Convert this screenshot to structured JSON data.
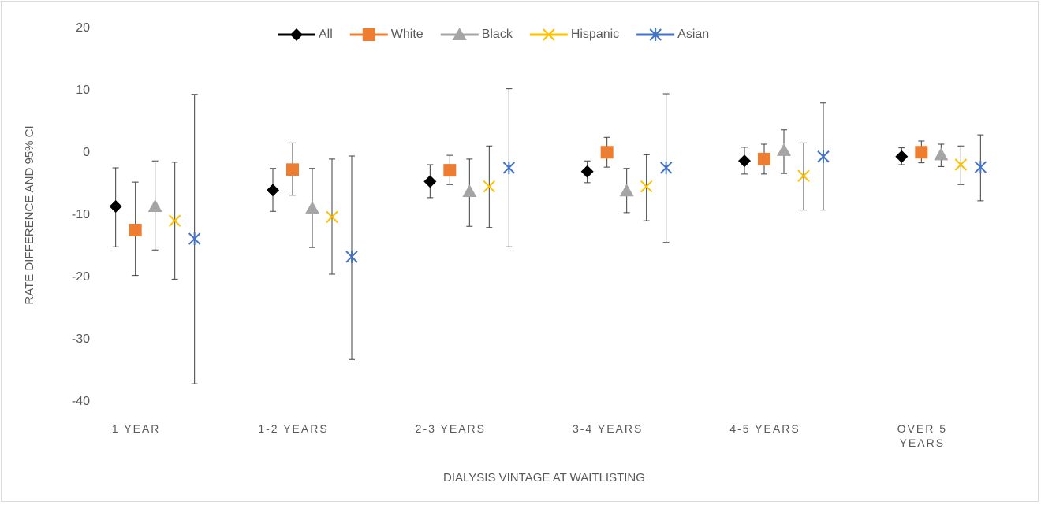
{
  "chart_data": {
    "type": "errorbar",
    "y_label": "RATE DIFFERENCE AND 95% CI",
    "x_label": "DIALYSIS VINTAGE AT WAITLISTING",
    "categories": [
      "1 YEAR",
      "1-2 YEARS",
      "2-3 YEARS",
      "3-4 YEARS",
      "4-5 YEARS",
      "OVER 5 YEARS"
    ],
    "ylim": [
      -40,
      20
    ],
    "yticks": [
      -40,
      -30,
      -20,
      -10,
      0,
      10,
      20
    ],
    "grid": false,
    "legend": "top",
    "series": [
      {
        "name": "All",
        "color": "#000000",
        "marker": "diamond",
        "values": [
          -8.6,
          -6.0,
          -4.6,
          -3.0,
          -1.3,
          -0.6
        ],
        "lower": [
          -15.1,
          -9.4,
          -7.2,
          -4.8,
          -3.4,
          -1.9
        ],
        "upper": [
          -2.4,
          -2.5,
          -1.9,
          -1.3,
          0.9,
          0.8
        ]
      },
      {
        "name": "White",
        "color": "#ed7d31",
        "marker": "square",
        "values": [
          -12.4,
          -2.7,
          -2.8,
          0.1,
          -1.0,
          0.1
        ],
        "lower": [
          -19.7,
          -6.8,
          -5.1,
          -2.3,
          -3.4,
          -1.6
        ],
        "upper": [
          -4.7,
          1.6,
          -0.4,
          2.5,
          1.4,
          1.9
        ]
      },
      {
        "name": "Black",
        "color": "#a5a5a5",
        "marker": "triangle",
        "values": [
          -8.6,
          -8.9,
          -6.2,
          -6.1,
          0.4,
          -0.3
        ],
        "lower": [
          -15.6,
          -15.2,
          -11.8,
          -9.6,
          -3.3,
          -2.2
        ],
        "upper": [
          -1.3,
          -2.5,
          -1.0,
          -2.5,
          3.7,
          1.4
        ]
      },
      {
        "name": "Hispanic",
        "color": "#ffc000",
        "marker": "x",
        "values": [
          -10.9,
          -10.3,
          -5.4,
          -5.4,
          -3.7,
          -1.9
        ],
        "lower": [
          -20.3,
          -19.5,
          -12.0,
          -10.9,
          -9.2,
          -5.1
        ],
        "upper": [
          -1.5,
          -1.0,
          1.1,
          -0.3,
          1.6,
          1.1
        ]
      },
      {
        "name": "Asian",
        "color": "#4472c4",
        "marker": "star",
        "values": [
          -13.8,
          -16.7,
          -2.4,
          -2.4,
          -0.6,
          -2.3
        ],
        "lower": [
          -37.1,
          -33.2,
          -15.1,
          -14.4,
          -9.2,
          -7.7
        ],
        "upper": [
          9.4,
          -0.5,
          10.3,
          9.5,
          8.0,
          2.9
        ]
      }
    ]
  }
}
